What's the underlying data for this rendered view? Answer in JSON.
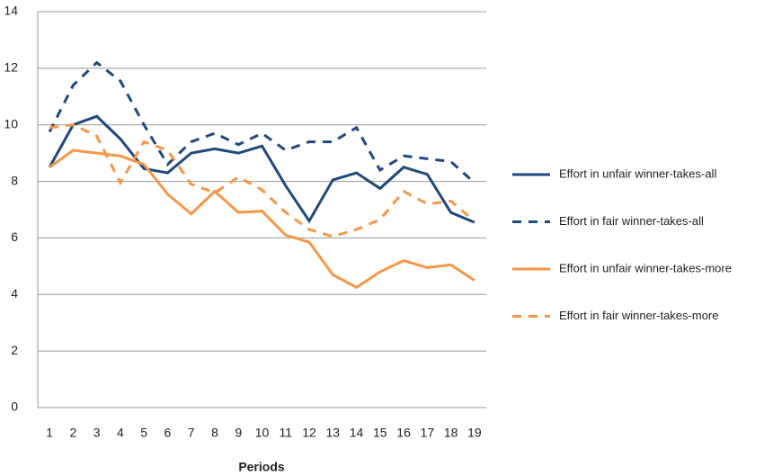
{
  "chart_data": {
    "type": "line",
    "x_label": "Periods",
    "categories": [
      "1",
      "2",
      "3",
      "4",
      "5",
      "6",
      "7",
      "8",
      "9",
      "10",
      "11",
      "12",
      "13",
      "14",
      "15",
      "16",
      "17",
      "18",
      "19"
    ],
    "series": [
      {
        "name": "Effort in unfair winner-takes-all",
        "color": "#1f497d",
        "line_style": "solid",
        "values": [
          8.5,
          10.0,
          10.3,
          9.5,
          8.45,
          8.3,
          9.0,
          9.15,
          9.0,
          9.25,
          7.85,
          6.6,
          8.05,
          8.3,
          7.75,
          8.5,
          8.25,
          6.9,
          6.55
        ]
      },
      {
        "name": "Effort in fair winner-takes-all",
        "color": "#1f497d",
        "line_style": "dashed",
        "values": [
          9.75,
          11.4,
          12.2,
          11.55,
          10.0,
          8.6,
          9.4,
          9.7,
          9.3,
          9.7,
          9.1,
          9.4,
          9.4,
          9.9,
          8.4,
          8.9,
          8.8,
          8.7,
          7.95
        ]
      },
      {
        "name": "Effort in unfair winner-takes-more",
        "color": "#f79646",
        "line_style": "solid",
        "values": [
          8.5,
          9.1,
          9.0,
          8.9,
          8.6,
          7.55,
          6.85,
          7.65,
          6.9,
          6.95,
          6.1,
          5.85,
          4.7,
          4.25,
          4.8,
          5.2,
          4.95,
          5.05,
          4.5
        ]
      },
      {
        "name": "Effort in fair winner-takes-more",
        "color": "#f79646",
        "line_style": "dashed",
        "values": [
          9.9,
          10.0,
          9.6,
          7.95,
          9.4,
          9.1,
          7.9,
          7.6,
          8.15,
          7.7,
          6.9,
          6.3,
          6.05,
          6.3,
          6.65,
          7.65,
          7.2,
          7.3,
          6.6
        ]
      }
    ],
    "ylim": [
      0,
      14
    ],
    "yticks": [
      0,
      2,
      4,
      6,
      8,
      10,
      12,
      14
    ],
    "grid": true,
    "legend": "right"
  }
}
